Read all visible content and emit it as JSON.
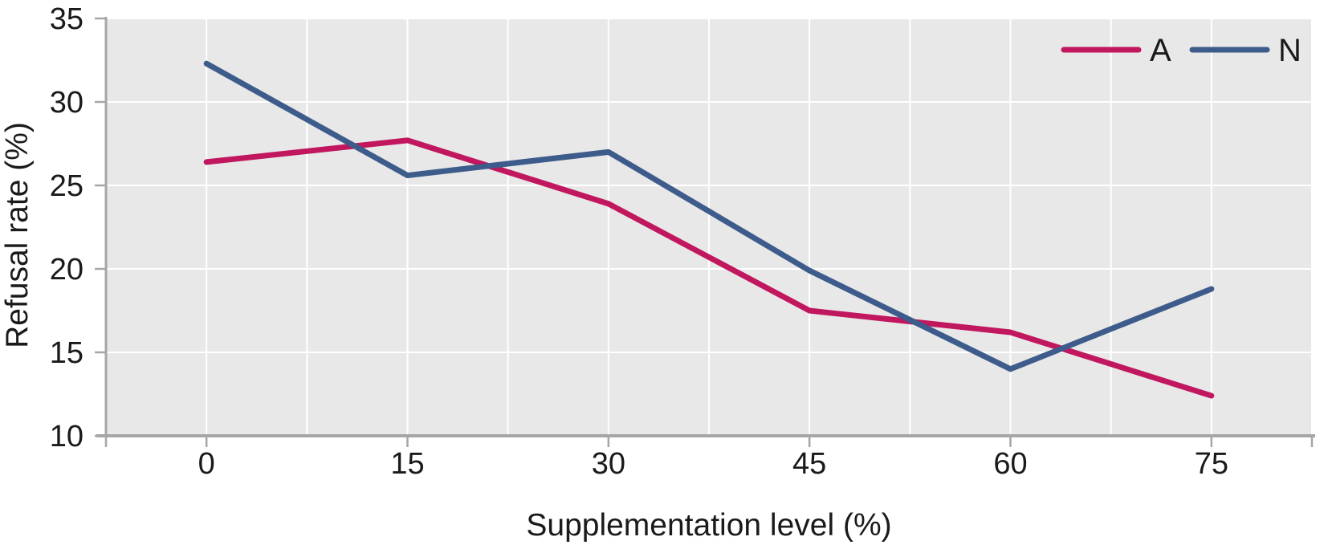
{
  "chart_data": {
    "type": "line",
    "title": "",
    "xlabel": "Supplementation level (%)",
    "ylabel": "Refusal rate (%)",
    "x": [
      0,
      15,
      30,
      45,
      60,
      75
    ],
    "series": [
      {
        "name": "A",
        "color": "#c0175f",
        "values": [
          26.4,
          27.7,
          23.9,
          17.5,
          16.2,
          12.4
        ]
      },
      {
        "name": "N",
        "color": "#3e5c8b",
        "values": [
          32.3,
          25.6,
          27.0,
          19.9,
          14.0,
          18.8
        ]
      }
    ],
    "xlim": [
      -7.5,
      82.5
    ],
    "ylim": [
      10,
      35
    ],
    "x_ticks": [
      0,
      15,
      30,
      45,
      60,
      75
    ],
    "y_ticks": [
      10,
      15,
      20,
      25,
      30,
      35
    ],
    "x_gridline_step": 7.5,
    "grid": true,
    "legend_position": "top-right-inside",
    "colors": {
      "plot_bg": "#e9e8e8",
      "gridline": "#ffffff",
      "axis": "#a6a6a6",
      "text": "#1a1a1a"
    }
  }
}
